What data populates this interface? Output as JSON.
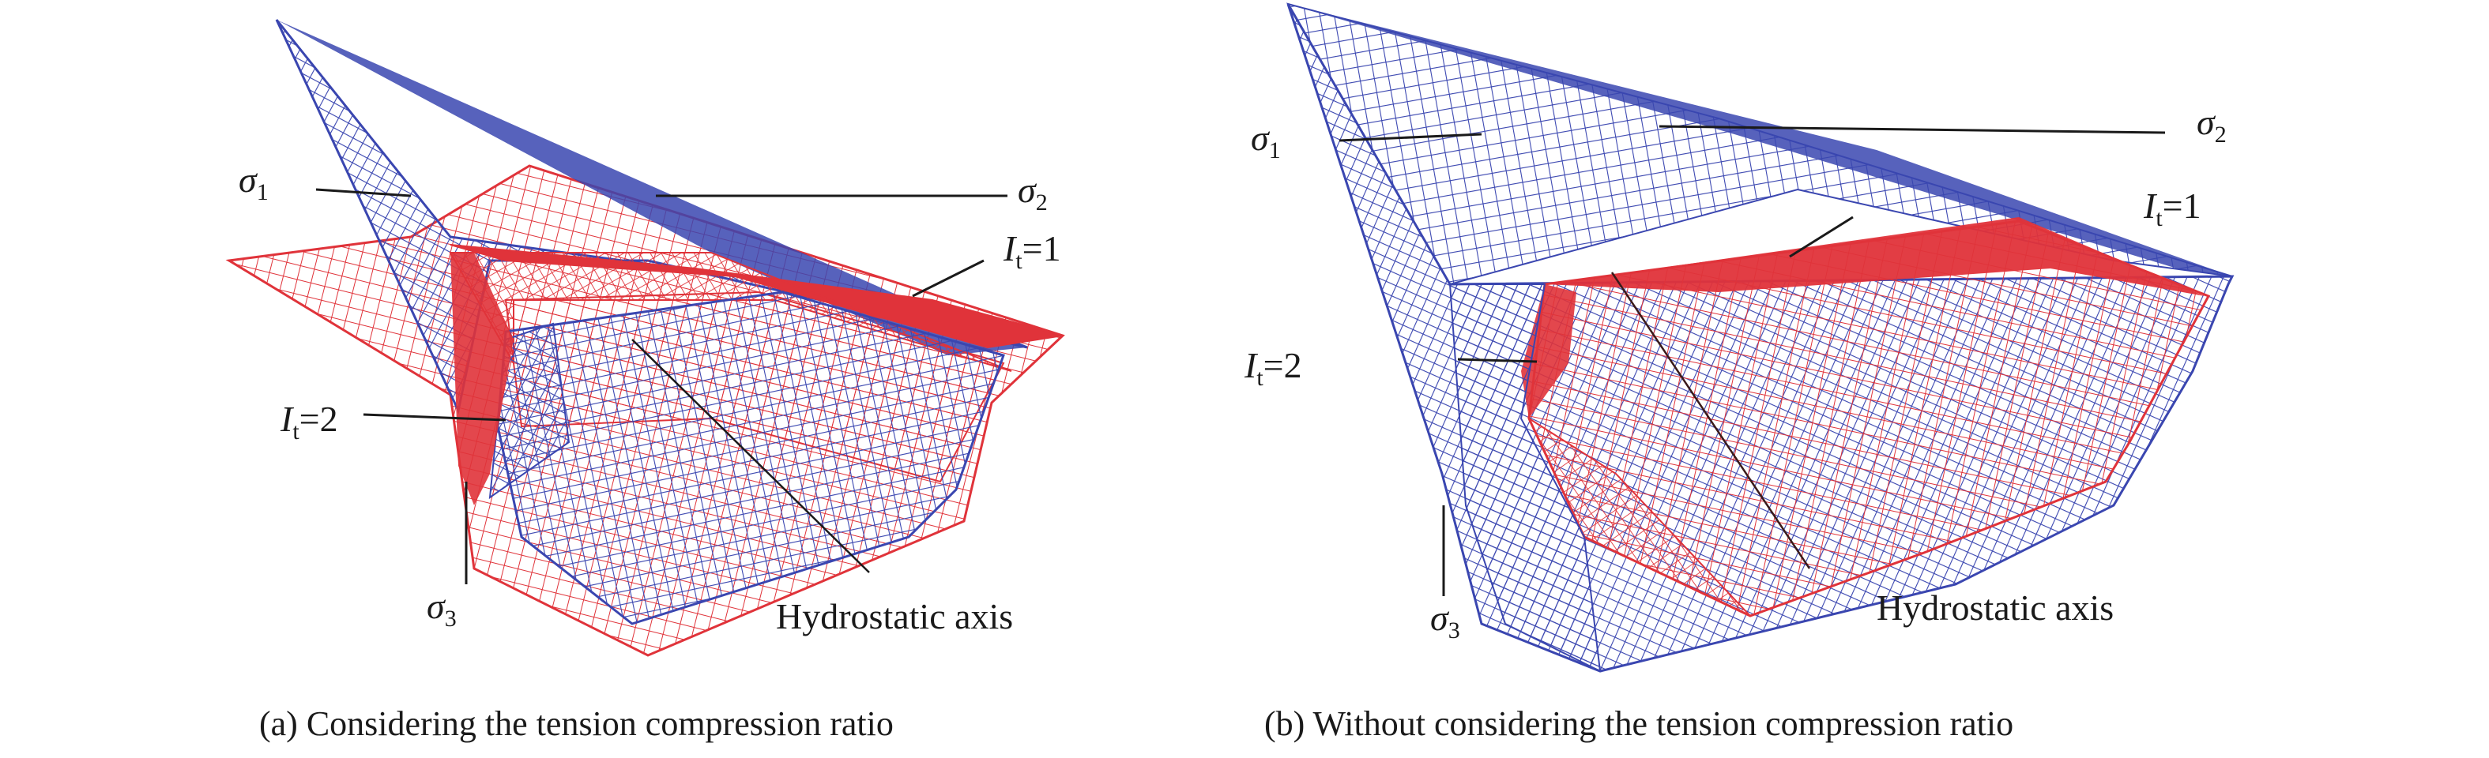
{
  "figure": {
    "panel_a": {
      "caption": "(a) Considering the tension compression ratio",
      "labels": {
        "sigma1_sym": "σ",
        "sigma1_sub": "1",
        "sigma2_sym": "σ",
        "sigma2_sub": "2",
        "sigma3_sym": "σ",
        "sigma3_sub": "3",
        "it1_sym": "I",
        "it1_sub": "t",
        "it1_val": "=1",
        "it2_sym": "I",
        "it2_sub": "t",
        "it2_val": "=2",
        "axis": "Hydrostatic axis"
      }
    },
    "panel_b": {
      "caption": "(b) Without considering the tension compression ratio",
      "labels": {
        "sigma1_sym": "σ",
        "sigma1_sub": "1",
        "sigma2_sym": "σ",
        "sigma2_sub": "2",
        "sigma3_sym": "σ",
        "sigma3_sub": "3",
        "it1_sym": "I",
        "it1_sub": "t",
        "it1_val": "=1",
        "it2_sym": "I",
        "it2_sub": "t",
        "it2_val": "=2",
        "axis": "Hydrostatic axis"
      }
    },
    "colors": {
      "blue_mesh": "#3a46b0",
      "red_mesh": "#e0333a",
      "leader": "#1a1a1a"
    }
  }
}
